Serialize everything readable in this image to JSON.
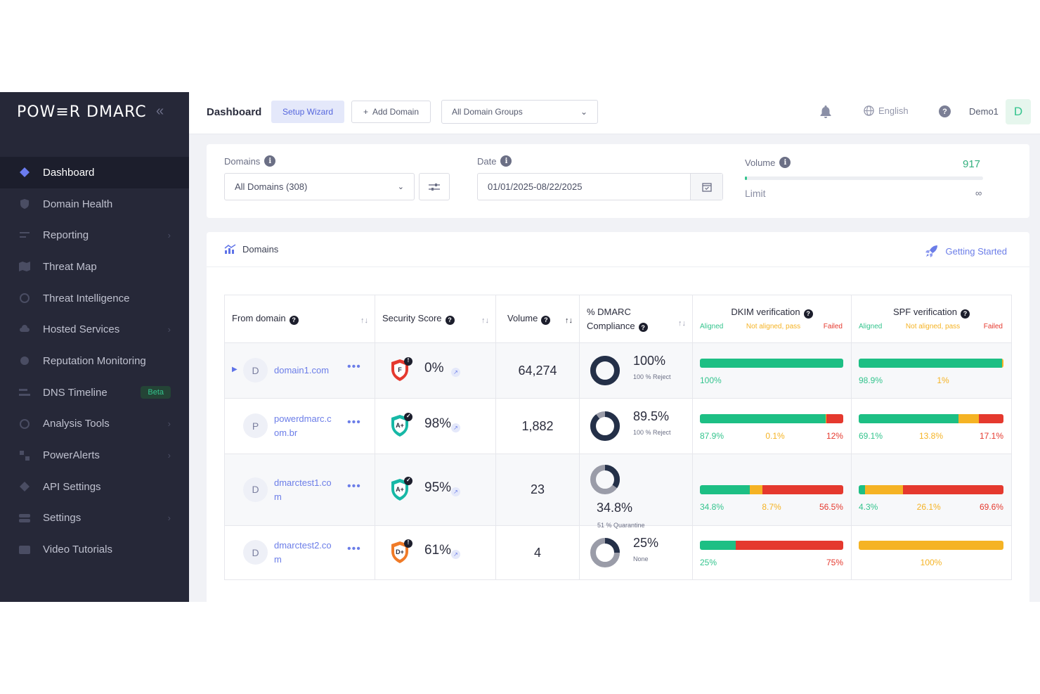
{
  "sidebar": {
    "logo": "POW≡R DMARC",
    "collapse_icon": "«",
    "items": [
      {
        "label": "Dashboard",
        "active": true
      },
      {
        "label": "Domain Health"
      },
      {
        "label": "Reporting",
        "chevron": true
      },
      {
        "label": "Threat Map"
      },
      {
        "label": "Threat Intelligence"
      },
      {
        "label": "Hosted Services",
        "chevron": true
      },
      {
        "label": "Reputation Monitoring"
      },
      {
        "label": "DNS Timeline",
        "badge": "Beta"
      },
      {
        "label": "Analysis Tools",
        "chevron": true
      },
      {
        "label": "PowerAlerts",
        "chevron": true
      },
      {
        "label": "API Settings"
      },
      {
        "label": "Settings",
        "chevron": true
      },
      {
        "label": "Video Tutorials"
      }
    ]
  },
  "header": {
    "title": "Dashboard",
    "setup_wizard": "Setup Wizard",
    "add_domain": "Add Domain",
    "domain_groups": "All Domain Groups",
    "language": "English",
    "user": "Demo1",
    "avatar": "D"
  },
  "filters": {
    "domains_label": "Domains",
    "domains_value": "All Domains (308)",
    "date_label": "Date",
    "date_value": "01/01/2025-08/22/2025",
    "volume_label": "Volume",
    "volume_value": "917",
    "volume_fill": 0.01,
    "limit_label": "Limit",
    "limit_value": "∞"
  },
  "domains": {
    "title": "Domains",
    "getting_started": "Getting Started",
    "columns": {
      "from_domain": "From domain",
      "security_score": "Security Score",
      "volume": "Volume",
      "dmarc_1": "% DMARC",
      "dmarc_2": "Compliance",
      "dkim": "DKIM verification",
      "spf": "SPF verification",
      "aligned": "Aligned",
      "not_aligned": "Not aligned, pass",
      "failed": "Failed"
    },
    "rows": [
      {
        "avatar": "D",
        "name": "domain1.com",
        "grade": "F",
        "shield_color": "#e5392e",
        "badge": "!",
        "score": "0%",
        "volume": "64,274",
        "compliance": "100%",
        "compliance_value": 100,
        "policy": "100 % Reject",
        "dkim": [
          100,
          0,
          0
        ],
        "dkim_labels": [
          "100%",
          "",
          ""
        ],
        "spf": [
          98.9,
          1.1,
          0
        ],
        "spf_labels": [
          "98.9%",
          "1%",
          ""
        ]
      },
      {
        "avatar": "P",
        "name": "powerdmarc.com.br",
        "grade": "A+",
        "shield_color": "#17b8a6",
        "badge": "✓",
        "score": "98%",
        "volume": "1,882",
        "compliance": "89.5%",
        "compliance_value": 89.5,
        "policy": "100 % Reject",
        "dkim": [
          87.9,
          0.1,
          12
        ],
        "dkim_labels": [
          "87.9%",
          "0.1%",
          "12%"
        ],
        "spf": [
          69.1,
          13.8,
          17.1
        ],
        "spf_labels": [
          "69.1%",
          "13.8%",
          "17.1%"
        ]
      },
      {
        "avatar": "D",
        "name": "dmarctest1.com",
        "grade": "A+",
        "shield_color": "#17b8a6",
        "badge": "✓",
        "score": "95%",
        "volume": "23",
        "compliance": "34.8%",
        "compliance_value": 34.8,
        "policy": "51 % Quarantine",
        "dkim": [
          34.8,
          8.7,
          56.5
        ],
        "dkim_labels": [
          "34.8%",
          "8.7%",
          "56.5%"
        ],
        "spf": [
          4.3,
          26.1,
          69.6
        ],
        "spf_labels": [
          "4.3%",
          "26.1%",
          "69.6%"
        ]
      },
      {
        "avatar": "D",
        "name": "dmarctest2.com",
        "grade": "D+",
        "shield_color": "#f07b28",
        "badge": "!",
        "score": "61%",
        "volume": "4",
        "compliance": "25%",
        "compliance_value": 25,
        "policy": "None",
        "dkim": [
          25,
          0,
          75
        ],
        "dkim_labels": [
          "25%",
          "",
          "75%"
        ],
        "spf": [
          0,
          100,
          0
        ],
        "spf_labels": [
          "",
          "100%",
          ""
        ]
      }
    ]
  },
  "colors": {
    "aligned": "#1dbf84",
    "not_aligned": "#f5b324",
    "failed": "#e5392e",
    "accent": "#5f73e8"
  }
}
